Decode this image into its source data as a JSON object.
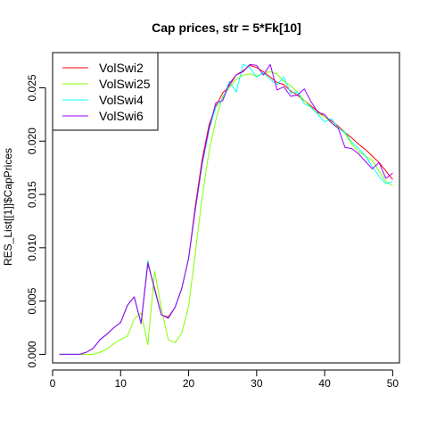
{
  "chart_data": {
    "type": "line",
    "title": "Cap prices, str = 5*Fk[10]",
    "xlabel": "",
    "ylabel": "RES_List[[1]]$CapPrices",
    "xlim": [
      0,
      51
    ],
    "ylim": [
      -0.0008,
      0.0283
    ],
    "xticks": [
      0,
      10,
      20,
      30,
      40,
      50
    ],
    "xtick_labels": [
      "0",
      "10",
      "20",
      "30",
      "40",
      "50"
    ],
    "yticks": [
      0.0,
      0.005,
      0.01,
      0.015,
      0.02,
      0.025
    ],
    "ytick_labels": [
      "0.000",
      "0.005",
      "0.010",
      "0.015",
      "0.020",
      "0.025"
    ],
    "grid": false,
    "legend_position": "top-left",
    "x": [
      1,
      2,
      3,
      4,
      5,
      6,
      7,
      8,
      9,
      10,
      11,
      12,
      13,
      14,
      15,
      16,
      17,
      18,
      19,
      20,
      21,
      22,
      23,
      24,
      25,
      26,
      27,
      28,
      29,
      30,
      31,
      32,
      33,
      34,
      35,
      36,
      37,
      38,
      39,
      40,
      41,
      42,
      43,
      44,
      45,
      46,
      47,
      48,
      49,
      50
    ],
    "series": [
      {
        "name": "VolSwi2",
        "color": "#ff0000",
        "values": [
          0,
          0,
          0,
          0,
          0.0002,
          0.0006,
          0.0014,
          0.0019,
          0.0025,
          0.003,
          0.0046,
          0.0054,
          0.0029,
          0.0085,
          0.0062,
          0.0037,
          0.0035,
          0.0044,
          0.0062,
          0.009,
          0.014,
          0.0183,
          0.0215,
          0.0233,
          0.0245,
          0.0252,
          0.0262,
          0.0266,
          0.0271,
          0.0269,
          0.0265,
          0.026,
          0.0255,
          0.0253,
          0.0247,
          0.0243,
          0.0238,
          0.0233,
          0.0228,
          0.0223,
          0.0219,
          0.0214,
          0.0208,
          0.0203,
          0.0197,
          0.0192,
          0.0186,
          0.018,
          0.0172,
          0.0164
        ]
      },
      {
        "name": "VolSwi25",
        "color": "#80ff00",
        "values": [
          0,
          0,
          0,
          0,
          0,
          0,
          0.0002,
          0.0005,
          0.001,
          0.0014,
          0.0017,
          0.0033,
          0.0039,
          0.0009,
          0.0078,
          0.0043,
          0.0014,
          0.0011,
          0.002,
          0.0045,
          0.0096,
          0.0148,
          0.019,
          0.022,
          0.0242,
          0.025,
          0.0258,
          0.0262,
          0.0263,
          0.0261,
          0.0264,
          0.0265,
          0.0263,
          0.0256,
          0.0252,
          0.0246,
          0.0238,
          0.0232,
          0.0226,
          0.0223,
          0.0217,
          0.0213,
          0.0207,
          0.0197,
          0.019,
          0.0186,
          0.0182,
          0.0172,
          0.0162,
          0.0158
        ]
      },
      {
        "name": "VolSwi4",
        "color": "#00ffff",
        "values": [
          0,
          0,
          0,
          0,
          0.0002,
          0.0006,
          0.0014,
          0.0019,
          0.0025,
          0.003,
          0.0046,
          0.0054,
          0.0029,
          0.0088,
          0.006,
          0.0037,
          0.0034,
          0.0044,
          0.0062,
          0.009,
          0.0136,
          0.0178,
          0.021,
          0.0232,
          0.0239,
          0.0256,
          0.0246,
          0.0272,
          0.0269,
          0.026,
          0.0264,
          0.0258,
          0.0253,
          0.026,
          0.0245,
          0.0246,
          0.0235,
          0.0232,
          0.0225,
          0.0218,
          0.0221,
          0.0212,
          0.0208,
          0.0199,
          0.0193,
          0.0186,
          0.0176,
          0.0167,
          0.016,
          0.0162
        ]
      },
      {
        "name": "VolSwi6",
        "color": "#9900ff",
        "values": [
          0,
          0,
          0,
          0,
          0.0002,
          0.0006,
          0.0014,
          0.0019,
          0.0025,
          0.003,
          0.0046,
          0.0054,
          0.0029,
          0.0086,
          0.0061,
          0.0037,
          0.0034,
          0.0044,
          0.0062,
          0.009,
          0.0137,
          0.018,
          0.0212,
          0.0236,
          0.0238,
          0.0254,
          0.0262,
          0.0265,
          0.0272,
          0.0271,
          0.0262,
          0.0272,
          0.0248,
          0.0251,
          0.0242,
          0.0243,
          0.0249,
          0.0237,
          0.0227,
          0.0225,
          0.0217,
          0.0212,
          0.0194,
          0.0193,
          0.0188,
          0.0181,
          0.0174,
          0.018,
          0.0165,
          0.017
        ]
      }
    ]
  }
}
